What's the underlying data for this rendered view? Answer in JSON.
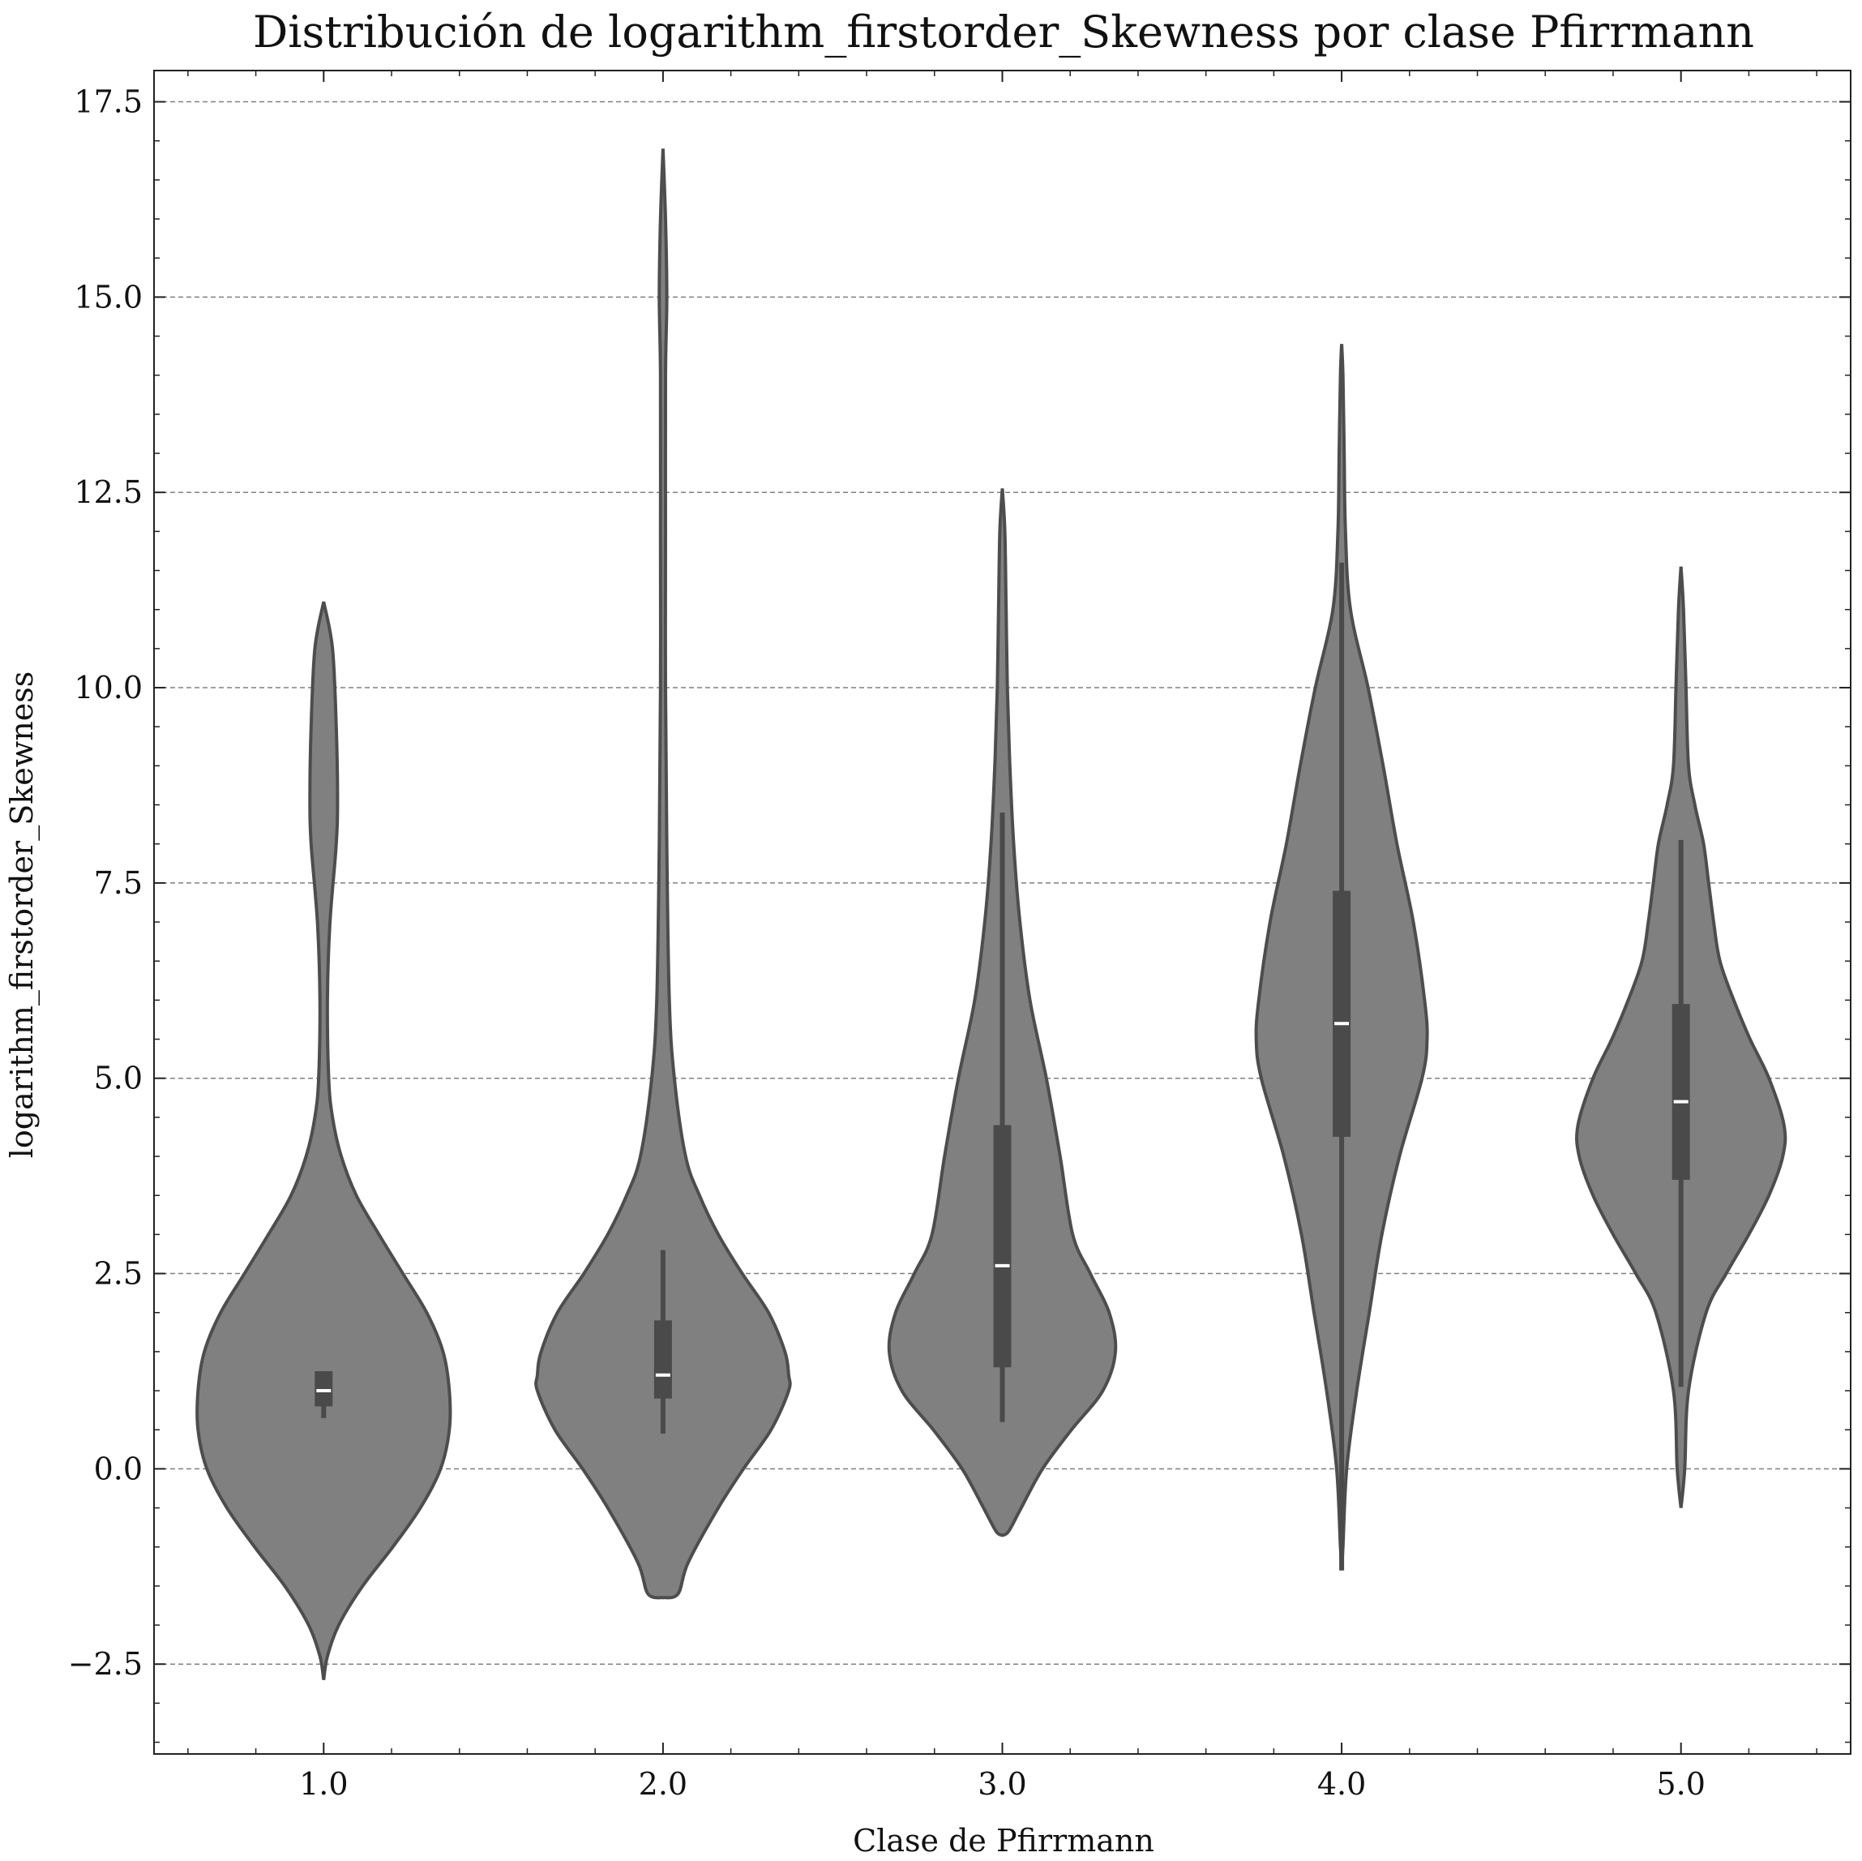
{
  "chart_data": {
    "type": "violin",
    "title": "Distribución de logarithm_firstorder_Skewness por clase Pfirrmann",
    "xlabel": "Clase de Pfirrmann",
    "ylabel": "logarithm_firstorder_Skewness",
    "categories": [
      "1.0",
      "2.0",
      "3.0",
      "4.0",
      "5.0"
    ],
    "ylim": [
      -3.65,
      17.9
    ],
    "yticks": [
      -2.5,
      0.0,
      2.5,
      5.0,
      7.5,
      10.0,
      12.5,
      15.0,
      17.5
    ],
    "ytick_labels": [
      "−2.5",
      "0.0",
      "2.5",
      "5.0",
      "7.5",
      "10.0",
      "12.5",
      "15.0",
      "17.5"
    ],
    "grid": "horizontal dashed",
    "colors": {
      "violin_fill": "#808080",
      "violin_edge": "#4d4d4d",
      "box": "#4a4a4a",
      "median": "#ffffff",
      "grid": "#808080"
    },
    "violins": [
      {
        "category": "1.0",
        "min": -2.7,
        "max": 11.1,
        "box": {
          "q1": 0.8,
          "median": 1.0,
          "q3": 1.25,
          "whisker_low": 0.65,
          "whisker_high": 1.25
        },
        "profile": [
          [
            -2.7,
            0.0
          ],
          [
            -2.4,
            0.03
          ],
          [
            -2.0,
            0.12
          ],
          [
            -1.5,
            0.31
          ],
          [
            -1.0,
            0.55
          ],
          [
            -0.5,
            0.77
          ],
          [
            0.0,
            0.93
          ],
          [
            0.5,
            1.0
          ],
          [
            1.0,
            1.0
          ],
          [
            1.5,
            0.95
          ],
          [
            2.0,
            0.82
          ],
          [
            2.5,
            0.63
          ],
          [
            3.0,
            0.44
          ],
          [
            3.5,
            0.26
          ],
          [
            4.0,
            0.14
          ],
          [
            4.5,
            0.07
          ],
          [
            5.0,
            0.04
          ],
          [
            6.0,
            0.03
          ],
          [
            7.0,
            0.05
          ],
          [
            8.0,
            0.1
          ],
          [
            8.6,
            0.11
          ],
          [
            9.5,
            0.1
          ],
          [
            10.5,
            0.07
          ],
          [
            11.1,
            0.0
          ]
        ]
      },
      {
        "category": "2.0",
        "min": -1.65,
        "max": 16.9,
        "box": {
          "q1": 0.9,
          "median": 1.2,
          "q3": 1.9,
          "whisker_low": 0.45,
          "whisker_high": 2.8
        },
        "profile": [
          [
            -1.65,
            0.0
          ],
          [
            -1.6,
            0.12
          ],
          [
            -1.2,
            0.2
          ],
          [
            -0.5,
            0.44
          ],
          [
            0.0,
            0.64
          ],
          [
            0.5,
            0.86
          ],
          [
            1.0,
            1.0
          ],
          [
            1.2,
            1.0
          ],
          [
            1.5,
            0.97
          ],
          [
            2.0,
            0.84
          ],
          [
            2.5,
            0.63
          ],
          [
            3.0,
            0.44
          ],
          [
            3.5,
            0.29
          ],
          [
            4.0,
            0.18
          ],
          [
            5.0,
            0.09
          ],
          [
            6.0,
            0.05
          ],
          [
            8.0,
            0.03
          ],
          [
            10.0,
            0.02
          ],
          [
            12.0,
            0.02
          ],
          [
            14.0,
            0.02
          ],
          [
            15.0,
            0.03
          ],
          [
            16.0,
            0.02
          ],
          [
            16.9,
            0.0
          ]
        ]
      },
      {
        "category": "3.0",
        "min": -0.85,
        "max": 12.55,
        "box": {
          "q1": 1.3,
          "median": 2.6,
          "q3": 4.4,
          "whisker_low": 0.6,
          "whisker_high": 8.4
        },
        "profile": [
          [
            -0.85,
            0.0
          ],
          [
            -0.8,
            0.05
          ],
          [
            -0.5,
            0.15
          ],
          [
            0.0,
            0.32
          ],
          [
            0.5,
            0.55
          ],
          [
            1.0,
            0.8
          ],
          [
            1.5,
            0.9
          ],
          [
            2.0,
            0.85
          ],
          [
            2.5,
            0.7
          ],
          [
            3.0,
            0.56
          ],
          [
            4.0,
            0.46
          ],
          [
            5.0,
            0.35
          ],
          [
            6.0,
            0.22
          ],
          [
            7.0,
            0.14
          ],
          [
            8.0,
            0.09
          ],
          [
            9.0,
            0.06
          ],
          [
            10.0,
            0.04
          ],
          [
            11.0,
            0.03
          ],
          [
            12.0,
            0.02
          ],
          [
            12.55,
            0.0
          ]
        ]
      },
      {
        "category": "4.0",
        "min": -1.3,
        "max": 14.4,
        "box": {
          "q1": 4.25,
          "median": 5.7,
          "q3": 7.4,
          "whisker_low": -1.3,
          "whisker_high": 11.6
        },
        "profile": [
          [
            -1.3,
            0.0
          ],
          [
            -1.0,
            0.01
          ],
          [
            0.0,
            0.04
          ],
          [
            1.0,
            0.12
          ],
          [
            2.0,
            0.22
          ],
          [
            3.0,
            0.32
          ],
          [
            4.0,
            0.46
          ],
          [
            5.0,
            0.64
          ],
          [
            5.5,
            0.68
          ],
          [
            6.0,
            0.66
          ],
          [
            7.0,
            0.57
          ],
          [
            8.0,
            0.44
          ],
          [
            9.0,
            0.33
          ],
          [
            10.0,
            0.21
          ],
          [
            11.0,
            0.07
          ],
          [
            12.0,
            0.03
          ],
          [
            13.0,
            0.02
          ],
          [
            14.0,
            0.01
          ],
          [
            14.4,
            0.0
          ]
        ]
      },
      {
        "category": "5.0",
        "min": -0.5,
        "max": 11.55,
        "box": {
          "q1": 3.7,
          "median": 4.7,
          "q3": 5.95,
          "whisker_low": 1.05,
          "whisker_high": 8.05
        },
        "profile": [
          [
            -0.5,
            0.0
          ],
          [
            0.0,
            0.03
          ],
          [
            1.0,
            0.06
          ],
          [
            2.0,
            0.2
          ],
          [
            2.5,
            0.36
          ],
          [
            3.0,
            0.54
          ],
          [
            3.5,
            0.7
          ],
          [
            4.0,
            0.81
          ],
          [
            4.4,
            0.82
          ],
          [
            5.0,
            0.7
          ],
          [
            5.5,
            0.55
          ],
          [
            6.0,
            0.42
          ],
          [
            6.5,
            0.31
          ],
          [
            7.0,
            0.26
          ],
          [
            7.5,
            0.22
          ],
          [
            8.0,
            0.18
          ],
          [
            8.5,
            0.11
          ],
          [
            9.0,
            0.06
          ],
          [
            10.0,
            0.04
          ],
          [
            11.0,
            0.02
          ],
          [
            11.55,
            0.0
          ]
        ]
      }
    ]
  }
}
